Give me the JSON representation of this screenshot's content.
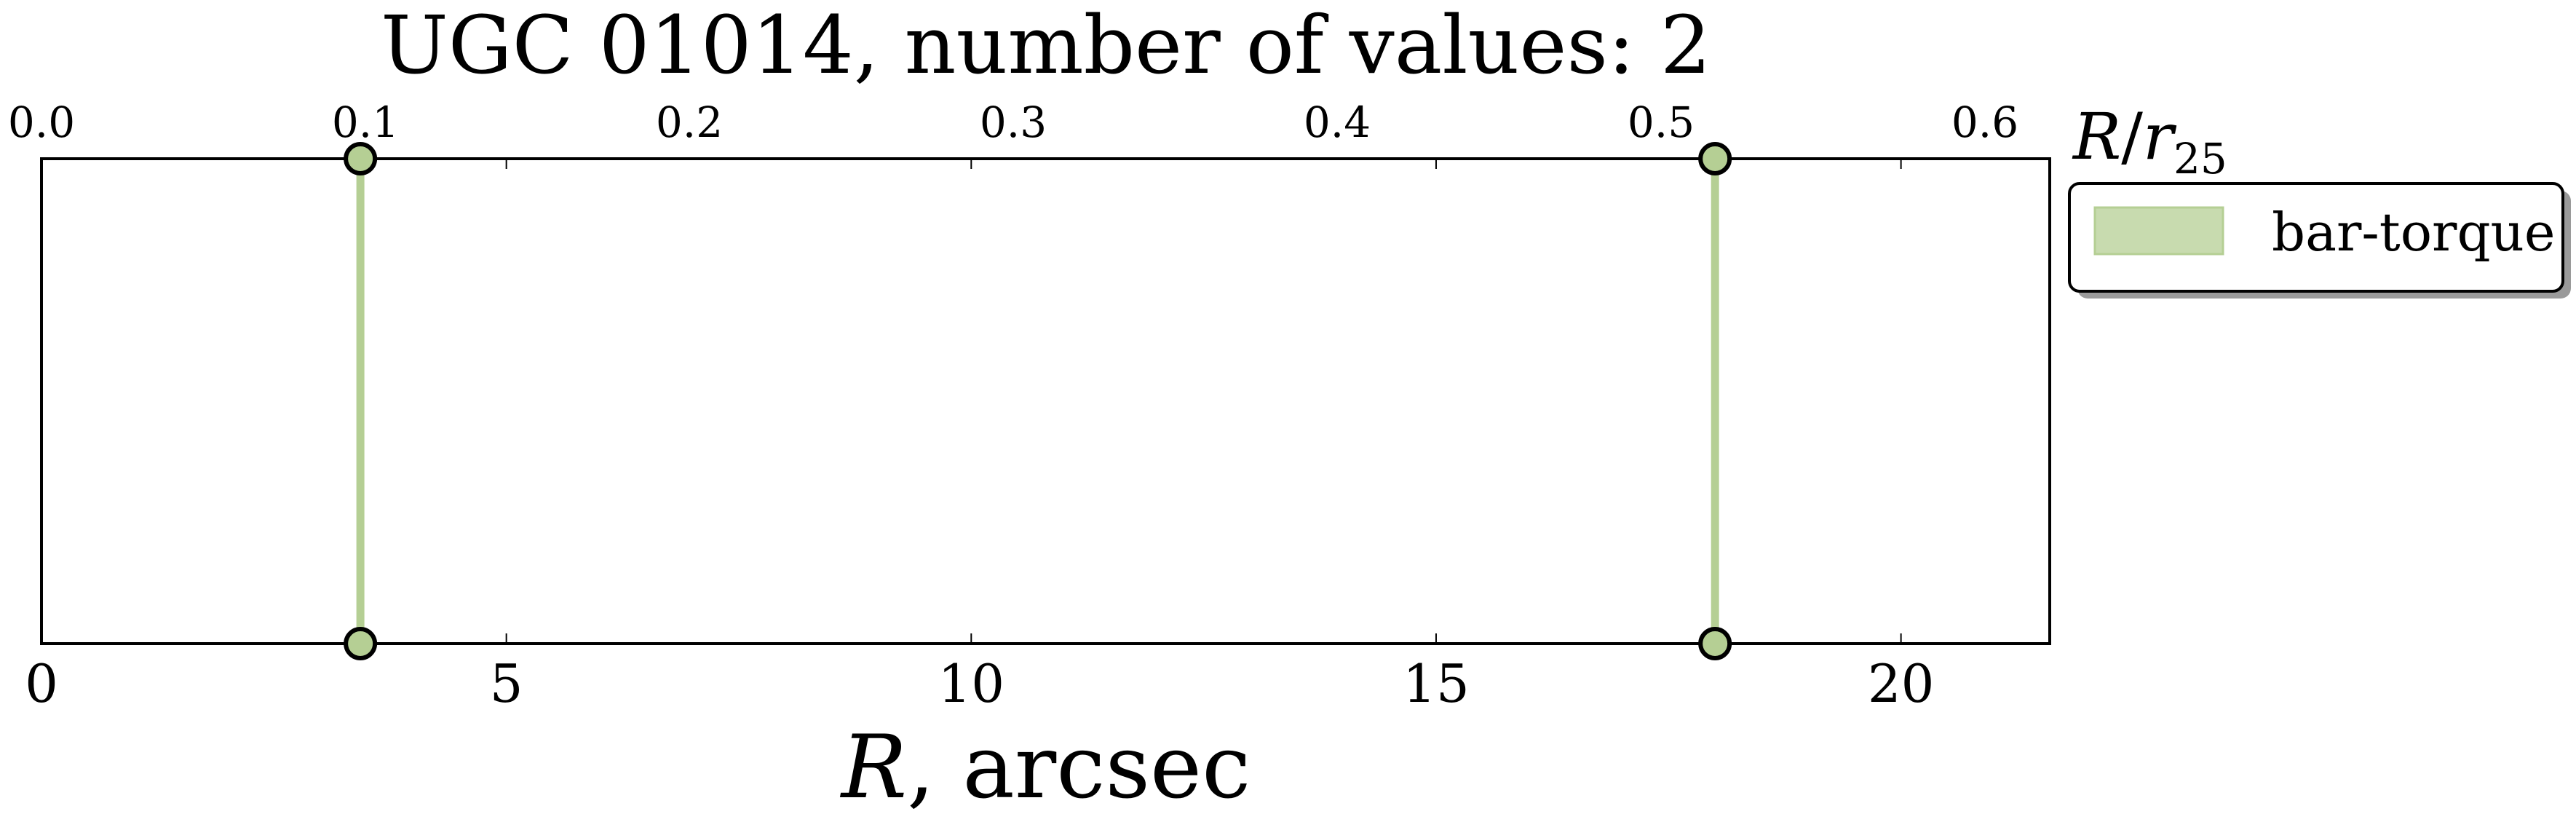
{
  "chart_data": {
    "type": "line",
    "title": "UGC 01014, number of values: 2",
    "xlabel": "R, arcsec",
    "x2label": "R/r25",
    "xlim": [
      0,
      21.6
    ],
    "x2lim": [
      0,
      0.62
    ],
    "xticks": [
      0,
      5,
      10,
      15,
      20
    ],
    "xtick_labels": [
      "0",
      "5",
      "10",
      "15",
      "20"
    ],
    "x2ticks": [
      0.0,
      0.1,
      0.2,
      0.3,
      0.4,
      0.5,
      0.6
    ],
    "x2tick_labels": [
      "0.0",
      "0.1",
      "0.2",
      "0.3",
      "0.4",
      "0.5",
      "0.6"
    ],
    "grid": false,
    "legend_position": "outside-top-right",
    "series": [
      {
        "name": "bar-torque",
        "color": "#b5cf94",
        "x": [
          3.43,
          18.0
        ]
      }
    ]
  }
}
